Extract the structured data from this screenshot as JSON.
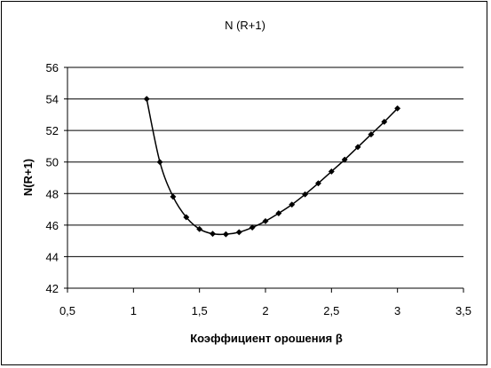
{
  "chart_data": {
    "type": "line",
    "title": "N (R+1)",
    "xlabel": "Коэффициент орошения β",
    "ylabel": "N(R+1)",
    "xlim": [
      0.5,
      3.5
    ],
    "ylim": [
      42,
      56
    ],
    "x_ticks": [
      0.5,
      1,
      1.5,
      2,
      2.5,
      3,
      3.5
    ],
    "x_tick_labels": [
      "0,5",
      "1",
      "1,5",
      "2",
      "2,5",
      "3",
      "3,5"
    ],
    "y_ticks": [
      42,
      44,
      46,
      48,
      50,
      52,
      54,
      56
    ],
    "y_tick_labels": [
      "42",
      "44",
      "46",
      "48",
      "50",
      "52",
      "54",
      "56"
    ],
    "grid": "horizontal",
    "legend": "none",
    "series": [
      {
        "color": "#000000",
        "marker": "diamond",
        "x": [
          1.1,
          1.2,
          1.3,
          1.4,
          1.5,
          1.6,
          1.7,
          1.8,
          1.9,
          2.0,
          2.1,
          2.2,
          2.3,
          2.4,
          2.5,
          2.6,
          2.7,
          2.8,
          2.9,
          3.0
        ],
        "y": [
          54.0,
          50.0,
          47.8,
          46.5,
          45.75,
          45.45,
          45.42,
          45.55,
          45.85,
          46.25,
          46.75,
          47.3,
          47.95,
          48.65,
          49.4,
          50.15,
          50.95,
          51.75,
          52.55,
          53.4
        ]
      }
    ]
  }
}
